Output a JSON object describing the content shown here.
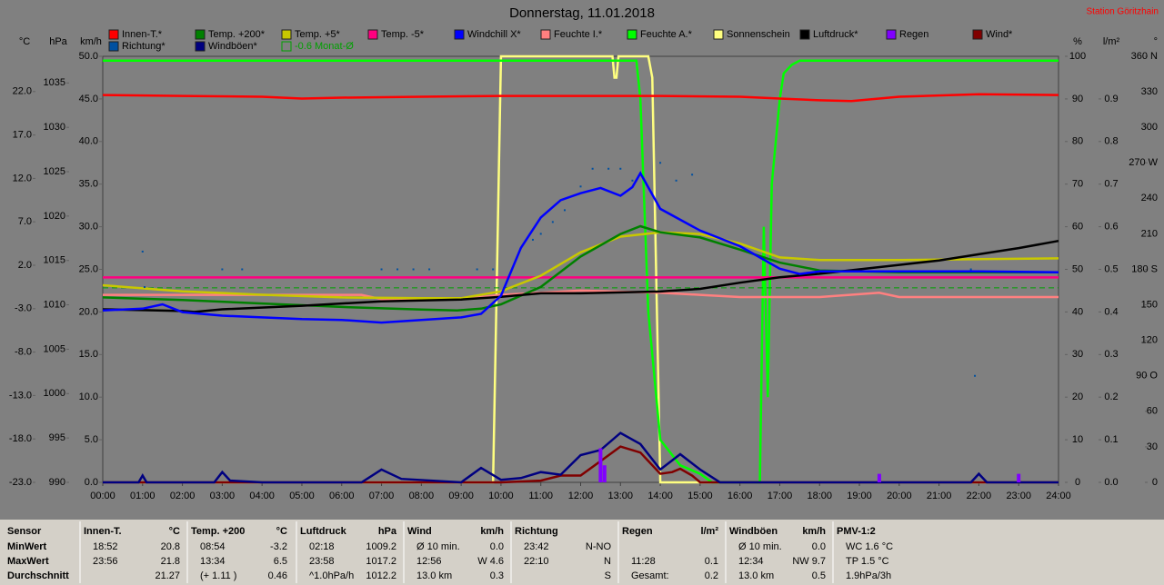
{
  "chart_data": {
    "type": "line",
    "title": "Donnerstag, 11.01.2018",
    "station": "Station Göritzhain",
    "xlim": [
      0,
      24
    ],
    "xticks": [
      {
        "value": 0,
        "label": "00:00"
      },
      {
        "value": 1,
        "label": "01:00"
      },
      {
        "value": 2,
        "label": "02:00"
      },
      {
        "value": 3,
        "label": "03:00"
      },
      {
        "value": 4,
        "label": "04:00"
      },
      {
        "value": 5,
        "label": "05:00"
      },
      {
        "value": 6,
        "label": "06:00"
      },
      {
        "value": 7,
        "label": "07:00"
      },
      {
        "value": 8,
        "label": "08:00"
      },
      {
        "value": 9,
        "label": "09:00"
      },
      {
        "value": 10,
        "label": "10:00"
      },
      {
        "value": 11,
        "label": "11:00"
      },
      {
        "value": 12,
        "label": "12:00"
      },
      {
        "value": 13,
        "label": "13:00"
      },
      {
        "value": 14,
        "label": "14:00"
      },
      {
        "value": 15,
        "label": "15:00"
      },
      {
        "value": 16,
        "label": "16:00"
      },
      {
        "value": 17,
        "label": "17:00"
      },
      {
        "value": 18,
        "label": "18:00"
      },
      {
        "value": 19,
        "label": "19:00"
      },
      {
        "value": 20,
        "label": "20:00"
      },
      {
        "value": 21,
        "label": "21:00"
      },
      {
        "value": 22,
        "label": "22:00"
      },
      {
        "value": 23,
        "label": "23:00"
      },
      {
        "value": 24,
        "label": "24:00"
      }
    ],
    "axes": [
      {
        "unit": "°C",
        "side": "left",
        "lim": [
          -23,
          26.06
        ],
        "ticks": [
          {
            "value": -23,
            "label": "-23.0"
          },
          {
            "value": -18,
            "label": "-18.0"
          },
          {
            "value": -13,
            "label": "-13.0"
          },
          {
            "value": -8,
            "label": "-8.0"
          },
          {
            "value": -3,
            "label": "-3.0"
          },
          {
            "value": 2,
            "label": "2.0"
          },
          {
            "value": 7,
            "label": "7.0"
          },
          {
            "value": 12,
            "label": "12.0"
          },
          {
            "value": 17,
            "label": "17.0"
          },
          {
            "value": 22,
            "label": "22.0"
          }
        ]
      },
      {
        "unit": "hPa",
        "side": "left",
        "lim": [
          990,
          1038
        ],
        "ticks": [
          990,
          995,
          1000,
          1005,
          1010,
          1015,
          1020,
          1025,
          1030,
          1035
        ]
      },
      {
        "unit": "km/h",
        "side": "left",
        "lim": [
          0,
          50
        ],
        "ticks": [
          {
            "value": 0,
            "label": "0.0"
          },
          {
            "value": 5,
            "label": "5.0"
          },
          {
            "value": 10,
            "label": "10.0"
          },
          {
            "value": 15,
            "label": "15.0"
          },
          {
            "value": 20,
            "label": "20.0"
          },
          {
            "value": 25,
            "label": "25.0"
          },
          {
            "value": 30,
            "label": "30.0"
          },
          {
            "value": 35,
            "label": "35.0"
          },
          {
            "value": 40,
            "label": "40.0"
          },
          {
            "value": 45,
            "label": "45.0"
          },
          {
            "value": 50,
            "label": "50.0"
          }
        ]
      },
      {
        "unit": "%",
        "side": "right",
        "lim": [
          0,
          100
        ],
        "ticks": [
          0,
          10,
          20,
          30,
          40,
          50,
          60,
          70,
          80,
          90,
          100
        ]
      },
      {
        "unit": "l/m²",
        "side": "right",
        "lim": [
          0,
          1
        ],
        "ticks": [
          {
            "value": 0,
            "label": "0.0"
          },
          {
            "value": 0.1,
            "label": "0.1"
          },
          {
            "value": 0.2,
            "label": "0.2"
          },
          {
            "value": 0.3,
            "label": "0.3"
          },
          {
            "value": 0.4,
            "label": "0.4"
          },
          {
            "value": 0.5,
            "label": "0.5"
          },
          {
            "value": 0.6,
            "label": "0.6"
          },
          {
            "value": 0.7,
            "label": "0.7"
          },
          {
            "value": 0.8,
            "label": "0.8"
          },
          {
            "value": 0.9,
            "label": "0.9"
          }
        ]
      },
      {
        "unit": "°",
        "side": "right",
        "lim": [
          0,
          360
        ],
        "ticks": [
          0,
          30,
          60,
          {
            "value": 90,
            "label": "90 O"
          },
          120,
          150,
          {
            "value": 180,
            "label": "180 S"
          },
          210,
          240,
          {
            "value": 270,
            "label": "270 W"
          },
          300,
          330,
          {
            "value": 360,
            "label": "360 N"
          }
        ]
      }
    ],
    "series": [
      {
        "name": "Innen-T.*",
        "color": "#ff0000",
        "axis": 0,
        "style": "line",
        "x": [
          0,
          2,
          4,
          5,
          6,
          8,
          10,
          12,
          14,
          16,
          17,
          18,
          18.8,
          20,
          22,
          24
        ],
        "values": [
          21.6,
          21.5,
          21.4,
          21.2,
          21.3,
          21.4,
          21.5,
          21.5,
          21.5,
          21.4,
          21.2,
          21.0,
          20.9,
          21.4,
          21.7,
          21.6
        ]
      },
      {
        "name": "Temp. +200*",
        "color": "#008000",
        "axis": 0,
        "style": "line",
        "x": [
          0,
          2,
          4,
          6,
          8,
          8.9,
          9.5,
          10,
          11,
          12,
          13,
          13.5,
          14,
          15,
          16,
          17,
          18,
          20,
          22,
          24
        ],
        "values": [
          -1.7,
          -2.0,
          -2.4,
          -2.8,
          -3.1,
          -3.2,
          -3.0,
          -2.5,
          -0.5,
          3.0,
          5.6,
          6.5,
          5.8,
          5.2,
          3.8,
          2.3,
          1.4,
          1.2,
          1.2,
          1.2
        ]
      },
      {
        "name": "Temp. +5*",
        "color": "#c8c800",
        "axis": 0,
        "style": "line",
        "x": [
          0,
          2,
          4,
          6,
          8,
          9,
          10,
          11,
          12,
          13,
          14,
          15,
          16,
          17,
          18,
          20,
          22,
          24
        ],
        "values": [
          -0.3,
          -1.0,
          -1.4,
          -1.7,
          -1.8,
          -1.8,
          -1.0,
          0.8,
          3.5,
          5.3,
          5.8,
          5.6,
          4.5,
          2.9,
          2.6,
          2.6,
          2.7,
          2.8
        ]
      },
      {
        "name": "Temp. -5*",
        "color": "#ff0080",
        "axis": 0,
        "style": "line",
        "x": [
          0,
          24
        ],
        "values": [
          0.6,
          0.6
        ]
      },
      {
        "name": "Windchill X*",
        "color": "#0000ff",
        "axis": 0,
        "style": "line",
        "x": [
          0,
          1,
          1.5,
          2,
          3,
          4,
          5,
          6,
          7,
          8,
          9,
          9.5,
          10,
          10.5,
          11,
          11.5,
          12,
          12.5,
          13,
          13.3,
          13.5,
          14,
          15,
          16,
          17,
          17.5,
          18,
          20,
          22,
          24
        ],
        "values": [
          -3.2,
          -3.0,
          -2.5,
          -3.4,
          -3.8,
          -4.0,
          -4.2,
          -4.3,
          -4.6,
          -4.3,
          -4.0,
          -3.6,
          -1.5,
          4.0,
          7.5,
          9.5,
          10.3,
          10.9,
          10.0,
          11.0,
          12.6,
          8.5,
          6.0,
          4.2,
          1.6,
          1.0,
          1.3,
          1.3,
          1.3,
          1.2
        ]
      },
      {
        "name": "Feuchte I.*",
        "color": "#ff8080",
        "axis": 3,
        "style": "line",
        "x": [
          0,
          1,
          4,
          6.5,
          7,
          8,
          9,
          10,
          11,
          12,
          14,
          15,
          16,
          18,
          19.5,
          20,
          22,
          24
        ],
        "values": [
          44,
          44,
          44,
          44,
          43,
          43,
          43,
          44,
          44.5,
          45,
          44.5,
          44,
          43.5,
          43.5,
          44.5,
          43.5,
          43.5,
          43.5
        ]
      },
      {
        "name": "Feuchte A.*",
        "color": "#00ff00",
        "axis": 3,
        "style": "line",
        "x": [
          0,
          13.4,
          13.5,
          13.7,
          14,
          14.5,
          15,
          15.3,
          16,
          16.5,
          16.6,
          16.7,
          16.8,
          16.9,
          17,
          17.1,
          17.3,
          17.5,
          18,
          24
        ],
        "values": [
          99,
          99,
          90,
          40,
          10,
          4,
          2,
          0,
          0,
          0,
          60,
          20,
          70,
          80,
          90,
          96,
          98,
          99,
          99,
          99
        ]
      },
      {
        "name": "Sonnenschein",
        "color": "#ffff80",
        "axis": 3,
        "style": "line",
        "x": [
          0,
          9.8,
          10,
          12.8,
          12.85,
          12.9,
          12.95,
          13.7,
          13.8,
          14,
          24
        ],
        "values": [
          0,
          0,
          100,
          100,
          95,
          95,
          100,
          100,
          95,
          0,
          0
        ]
      },
      {
        "name": "Luftdruck*",
        "color": "#000000",
        "axis": 1,
        "style": "line",
        "x": [
          0,
          1,
          2,
          2.3,
          3,
          5,
          7,
          9,
          10,
          11,
          12,
          13,
          14,
          15,
          16,
          17,
          18,
          19,
          20,
          21,
          22,
          23,
          24
        ],
        "values": [
          1009.5,
          1009.4,
          1009.3,
          1009.2,
          1009.5,
          1009.9,
          1010.4,
          1010.6,
          1010.9,
          1011.3,
          1011.3,
          1011.4,
          1011.5,
          1011.8,
          1012.5,
          1013.1,
          1013.5,
          1014.0,
          1014.5,
          1015.0,
          1015.7,
          1016.4,
          1017.2
        ]
      },
      {
        "name": "Regen",
        "color": "#8000ff",
        "axis": 4,
        "style": "bars",
        "x": [
          12.5,
          12.6,
          19.5,
          23
        ],
        "values": [
          0.08,
          0.04,
          0.02,
          0.02
        ]
      },
      {
        "name": "Wind*",
        "color": "#800000",
        "axis": 2,
        "style": "line",
        "x": [
          0,
          10,
          11,
          11.5,
          12,
          12.5,
          13,
          13.5,
          14,
          14.3,
          14.5,
          14.8,
          15,
          24
        ],
        "values": [
          0,
          0,
          0.2,
          0.8,
          0.8,
          2.5,
          4.2,
          3.5,
          1.0,
          1.2,
          1.6,
          0.8,
          0,
          0
        ]
      },
      {
        "name": "Richtung*",
        "color": "#0050a0",
        "axis": 5,
        "style": "dots",
        "x": [
          1,
          1.05,
          3,
          3.5,
          7,
          7.4,
          7.8,
          8.2,
          9.4,
          9.8,
          10.8,
          11,
          11.3,
          11.6,
          12,
          12.3,
          12.7,
          13,
          13.3,
          14,
          14.4,
          14.8,
          21.8,
          21.9
        ],
        "values": [
          195,
          165,
          180,
          180,
          180,
          180,
          180,
          180,
          180,
          180,
          205,
          210,
          220,
          230,
          250,
          265,
          265,
          265,
          255,
          270,
          255,
          260,
          180,
          90
        ]
      },
      {
        "name": "Windböen*",
        "color": "#000080",
        "axis": 2,
        "style": "line",
        "x": [
          0,
          0.9,
          1,
          1.1,
          2,
          2.8,
          3,
          3.2,
          4,
          6.5,
          7,
          7.5,
          9,
          9.5,
          10,
          10.5,
          11,
          11.5,
          12,
          12.5,
          13,
          13.5,
          14,
          14.5,
          15,
          15.5,
          21.8,
          22,
          22.2,
          24
        ],
        "values": [
          0,
          0,
          0.8,
          0,
          0,
          0,
          1.2,
          0.2,
          0,
          0,
          1.5,
          0.4,
          0,
          1.7,
          0.3,
          0.5,
          1.2,
          0.9,
          3.2,
          3.8,
          5.8,
          4.5,
          1.5,
          3.3,
          1.5,
          0,
          0,
          1.0,
          0,
          0
        ]
      },
      {
        "name": "-0.6 Monat-Ø",
        "color": "#00a000",
        "axis": 0,
        "style": "dashed",
        "x": [
          0,
          24
        ],
        "values": [
          -0.6,
          -0.6
        ]
      }
    ]
  },
  "table": {
    "groups": [
      {
        "title": "Sensor",
        "rows": [
          [
            "MinWert"
          ],
          [
            "MaxWert"
          ],
          [
            "Durchschnitt"
          ]
        ]
      },
      {
        "title": "Innen-T.",
        "unit": "°C",
        "rows": [
          [
            "18:52",
            "20.8"
          ],
          [
            "23:56",
            "21.8"
          ],
          [
            "21.27"
          ]
        ]
      },
      {
        "title": "Temp. +200",
        "unit": "°C",
        "rows": [
          [
            "08:54",
            "-3.2"
          ],
          [
            "13:34",
            "6.5"
          ],
          [
            "(+ 1.11 )",
            "0.46"
          ]
        ]
      },
      {
        "title": "Luftdruck",
        "unit": "hPa",
        "rows": [
          [
            "02:18",
            "1009.2"
          ],
          [
            "23:58",
            "1017.2"
          ],
          [
            "^1.0hPa/h",
            "1012.2"
          ]
        ]
      },
      {
        "title": "Wind",
        "unit": "km/h",
        "rows": [
          [
            "Ø 10 min.",
            "0.0"
          ],
          [
            "12:56",
            "W 4.6"
          ],
          [
            "13.0 km",
            "0.3"
          ]
        ]
      },
      {
        "title": "Richtung",
        "rows": [
          [
            "23:42",
            "N-NO"
          ],
          [
            "22:10",
            "N"
          ],
          [
            "S"
          ]
        ]
      },
      {
        "title": "Regen",
        "unit": "l/m²",
        "rows": [
          [],
          [
            "11:28",
            "0.1"
          ],
          [
            "Gesamt:",
            "0.2"
          ]
        ]
      },
      {
        "title": "Windböen",
        "unit": "km/h",
        "rows": [
          [
            "Ø 10 min.",
            "0.0"
          ],
          [
            "12:34",
            "NW 9.7"
          ],
          [
            "13.0 km",
            "0.5"
          ]
        ]
      },
      {
        "title": "PMV-1:2",
        "rows": [
          [
            "WC 1.6 °C"
          ],
          [
            "TP 1.5 °C"
          ],
          [
            "1.9hPa/3h"
          ]
        ]
      }
    ]
  }
}
